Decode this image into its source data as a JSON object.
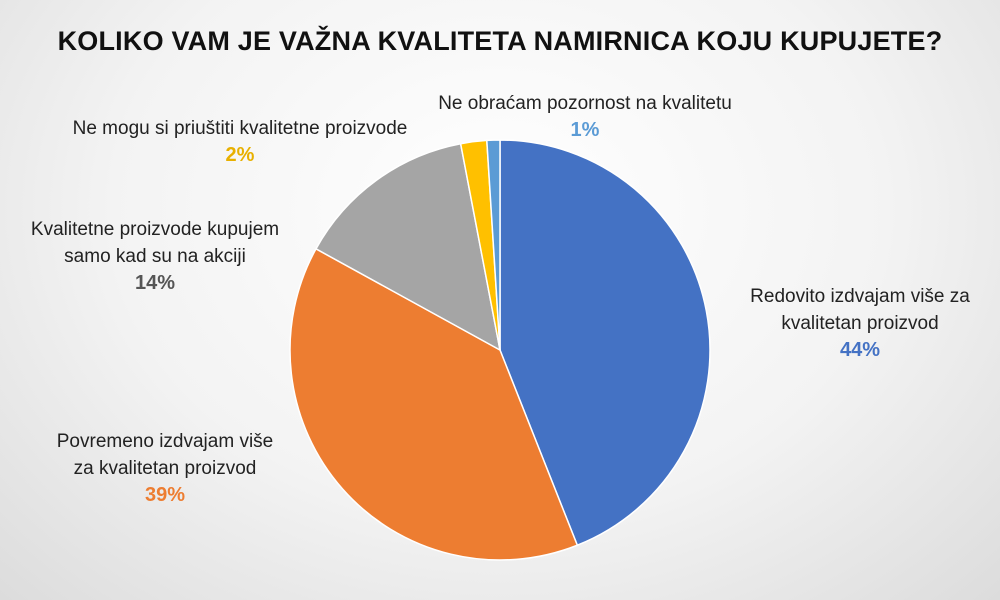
{
  "title": "KOLIKO VAM JE VAŽNA KVALITETA NAMIRNICA KOJU KUPUJETE?",
  "chart_data": {
    "type": "pie",
    "title": "KOLIKO VAM JE VAŽNA KVALITETA NAMIRNICA KOJU KUPUJETE?",
    "slices": [
      {
        "label": "Redovito izdvajam više za kvalitetan proizvod",
        "value": 44,
        "display": "44%",
        "color": "#4472C4"
      },
      {
        "label": "Povremeno izdvajam više za kvalitetan proizvod",
        "value": 39,
        "display": "39%",
        "color": "#ED7D31"
      },
      {
        "label": "Kvalitetne proizvode kupujem samo kad su na akciji",
        "value": 14,
        "display": "14%",
        "color": "#A5A5A5"
      },
      {
        "label": "Ne mogu si priuštiti kvalitetne proizvode",
        "value": 2,
        "display": "2%",
        "color": "#FFC000"
      },
      {
        "label": "Ne obraćam pozornost na kvalitetu",
        "value": 1,
        "display": "1%",
        "color": "#5B9BD5"
      }
    ],
    "labels": {
      "blue_line1": "Redovito izdvajam više za",
      "blue_line2": "kvalitetan proizvod",
      "orange_line1": "Povremeno izdvajam više",
      "orange_line2": "za kvalitetan proizvod",
      "gray_line1": "Kvalitetne proizvode kupujem",
      "gray_line2": "samo kad su na akciji",
      "yellow_line1": "Ne mogu si priuštiti kvalitetne proizvode",
      "light_line1": "Ne obraćam pozornost na kvalitetu"
    }
  }
}
